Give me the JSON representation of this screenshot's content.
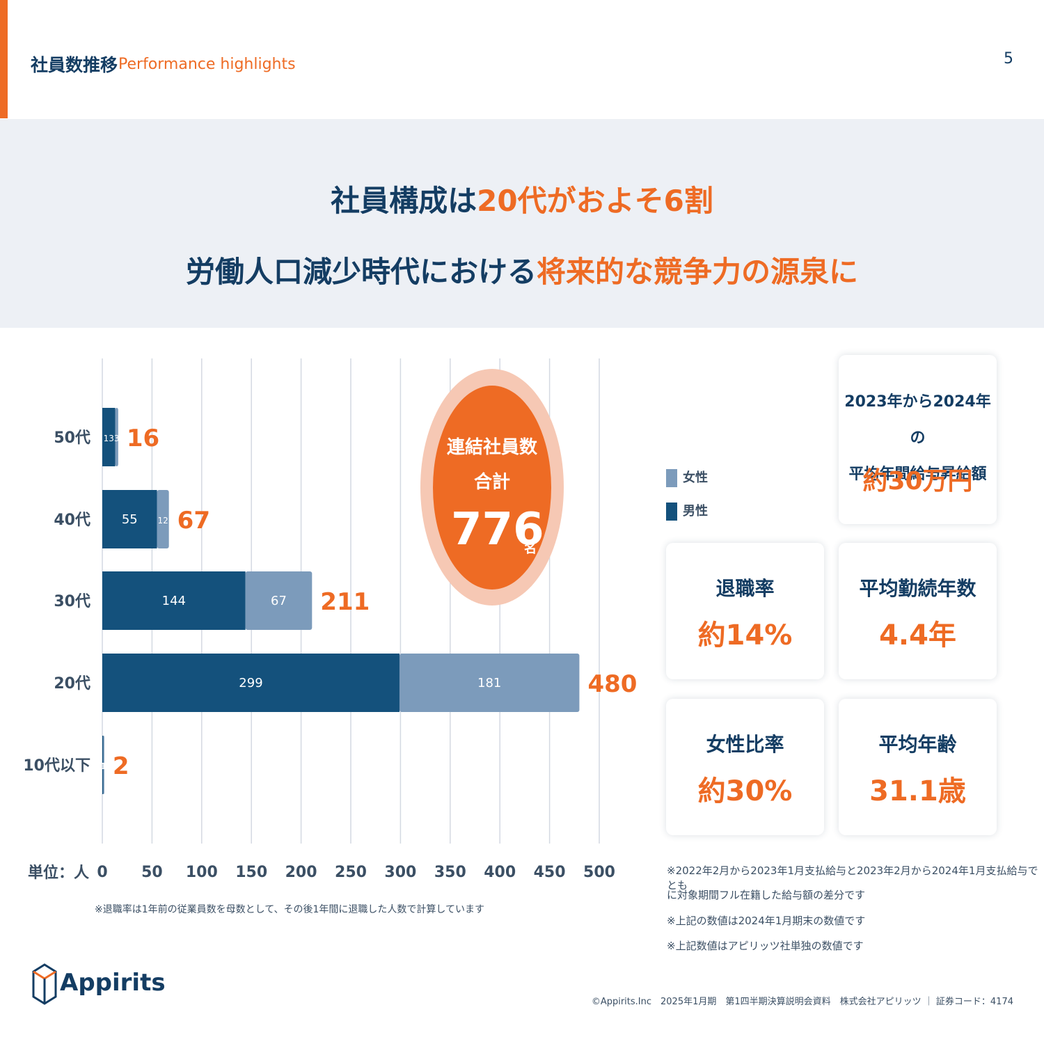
{
  "header": {
    "title_jp": "社員数推移",
    "title_en": "Performance highlights",
    "page_number": "5"
  },
  "banner": {
    "line1_a": "社員構成は",
    "line1_b": "20代がおよそ6割",
    "line2_a": "労働人口減少時代における",
    "line2_b": "将来的な競争力の源泉に"
  },
  "chart_data": {
    "type": "bar",
    "orientation": "horizontal",
    "stacked": true,
    "categories": [
      "50代",
      "40代",
      "30代",
      "20代",
      "10代以下"
    ],
    "series": [
      {
        "name": "男性",
        "values": [
          13,
          55,
          144,
          299,
          1
        ],
        "color": "#14517c"
      },
      {
        "name": "女性",
        "values": [
          3,
          12,
          67,
          181,
          1
        ],
        "color": "#7c9bbb"
      }
    ],
    "totals": [
      16,
      67,
      211,
      480,
      2
    ],
    "xlim": [
      0,
      500
    ],
    "xticks": [
      0,
      50,
      100,
      150,
      200,
      250,
      300,
      350,
      400,
      450,
      500
    ],
    "xlabel": "単位：人",
    "grid": "vertical",
    "legend": "right"
  },
  "colors": {
    "accent": "#ee6b24",
    "navy": "#143d63",
    "male": "#14517c",
    "female": "#7c9bbb"
  },
  "total": {
    "label1": "連結社員数",
    "label2": "合計",
    "value": "776",
    "unit": "名"
  },
  "legend": {
    "female": "女性",
    "male": "男性"
  },
  "cards": {
    "salary_title1": "2023年から2024年の",
    "salary_title2": "平均年間給与昇給額",
    "salary_value": "約30万円",
    "retire_title": "退職率",
    "retire_value": "約14%",
    "tenure_title": "平均勤続年数",
    "tenure_value": "4.4年",
    "female_title": "女性比率",
    "female_value": "約30%",
    "age_title": "平均年齢",
    "age_value": "31.1歳"
  },
  "notes": {
    "left": "※退職率は1年前の従業員数を母数として、その後1年間に退職した人数で計算しています",
    "right1": "※2022年2月から2023年1月支払給与と2023年2月から2024年1月支払給与でとも",
    "right2": "に対象期間フル在籍した給与額の差分です",
    "right3": "※上記の数値は2024年1月期末の数値です",
    "right4": "※上記数値はアピリッツ社単独の数値です"
  },
  "brand": {
    "logo_text": "Appirits"
  },
  "footer": "©Appirits.Inc　2025年1月期　第1四半期決算説明会資料　株式会社アピリッツ ｜ 証券コード：4174"
}
